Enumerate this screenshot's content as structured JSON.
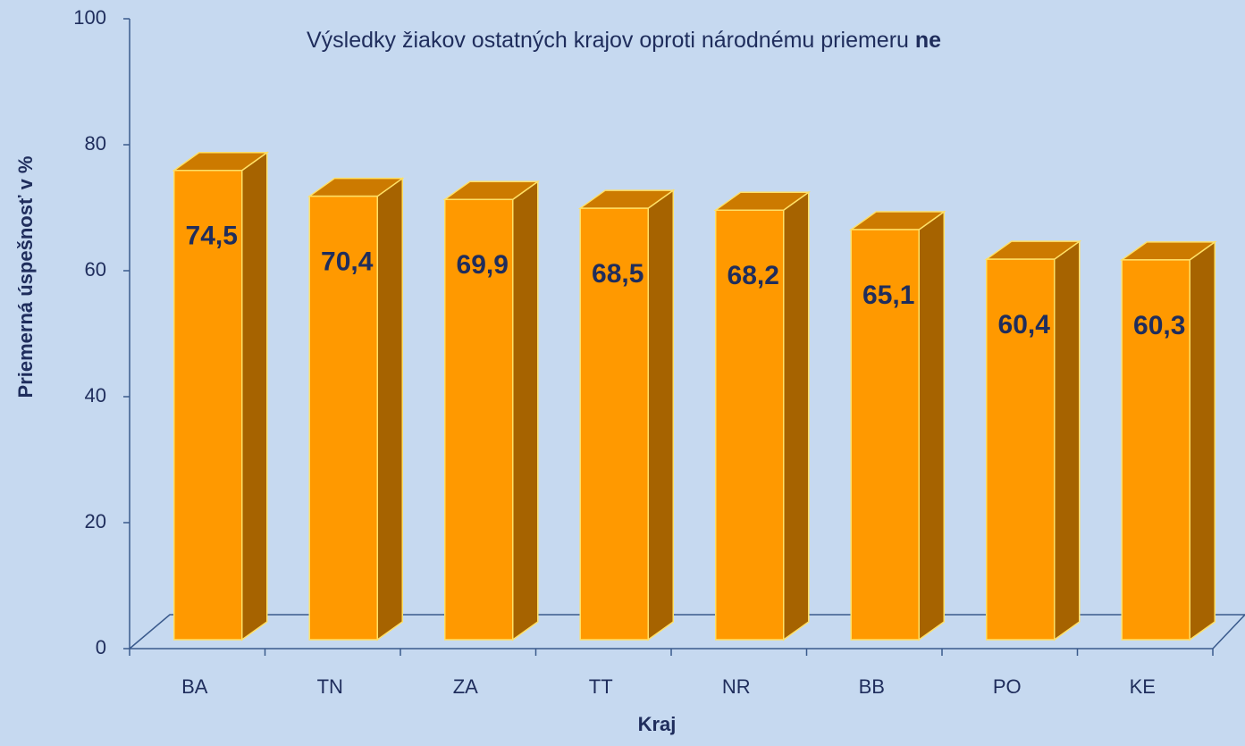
{
  "chart_data": {
    "type": "bar3d",
    "title": [
      "Výsledky žiakov ostatných krajov oproti národnému priemeru",
      "ne"
    ],
    "xlabel": "Kraj",
    "ylabel": "Priemerná  úspešnosť v %",
    "categories": [
      "BA",
      "TN",
      "ZA",
      "TT",
      "NR",
      "BB",
      "PO",
      "KE"
    ],
    "values": [
      74.5,
      70.4,
      69.9,
      68.5,
      68.2,
      65.1,
      60.4,
      60.3
    ],
    "value_labels": [
      "74,5",
      "70,4",
      "69,9",
      "68,5",
      "68,2",
      "65,1",
      "60,4",
      "60,3"
    ],
    "color": "#ff9900",
    "ylim": [
      0,
      100
    ],
    "yticks": [
      0,
      20,
      40,
      60,
      80,
      100
    ]
  }
}
